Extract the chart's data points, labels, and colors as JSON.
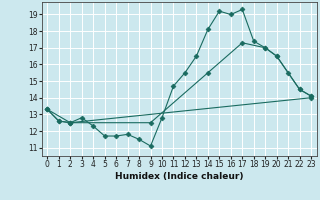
{
  "xlabel": "Humidex (Indice chaleur)",
  "background_color": "#cce8ee",
  "grid_color": "#ffffff",
  "line_color": "#1a6b60",
  "xlim": [
    -0.5,
    23.5
  ],
  "ylim": [
    10.5,
    19.75
  ],
  "xticks": [
    0,
    1,
    2,
    3,
    4,
    5,
    6,
    7,
    8,
    9,
    10,
    11,
    12,
    13,
    14,
    15,
    16,
    17,
    18,
    19,
    20,
    21,
    22,
    23
  ],
  "yticks": [
    11,
    12,
    13,
    14,
    15,
    16,
    17,
    18,
    19
  ],
  "line1_x": [
    0,
    1,
    2,
    3,
    4,
    5,
    6,
    7,
    8,
    9,
    10,
    11,
    12,
    13,
    14,
    15,
    16,
    17,
    18,
    19,
    20,
    21,
    22,
    23
  ],
  "line1_y": [
    13.3,
    12.6,
    12.5,
    12.8,
    12.3,
    11.7,
    11.7,
    11.8,
    11.5,
    11.1,
    12.8,
    14.7,
    15.5,
    16.5,
    18.1,
    19.2,
    19.0,
    19.3,
    17.4,
    17.0,
    16.5,
    15.5,
    14.5,
    14.1
  ],
  "line2_x": [
    0,
    2,
    9,
    14,
    17,
    19,
    20,
    22,
    23
  ],
  "line2_y": [
    13.3,
    12.5,
    12.5,
    15.5,
    17.3,
    17.0,
    16.5,
    14.5,
    14.1
  ],
  "line3_x": [
    0,
    1,
    2,
    23
  ],
  "line3_y": [
    13.3,
    12.6,
    12.5,
    14.0
  ],
  "xlabel_fontsize": 6.5,
  "tick_fontsize": 5.5
}
